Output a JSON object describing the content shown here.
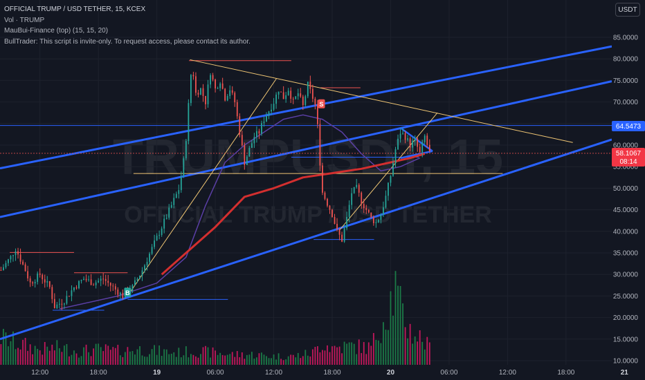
{
  "legend": {
    "symbol_line": "OFFICIAL TRUMP / USD TETHER, 15, KCEX",
    "vol_line": "Vol · TRUMP",
    "indicator_line": "MauBui-Finance (top) (15, 15, 20)",
    "script_line": "BullTrader: This script is invite-only. To request access, please contact its author."
  },
  "currency_button": "USDT",
  "watermark": {
    "ticker": "TRUMPUSDT, 15",
    "name": "OFFICIAL TRUMP / USD TETHER"
  },
  "colors": {
    "background": "#131722",
    "up": "#26a69a",
    "down": "#ef5350",
    "vol_up": "#1b7a47",
    "vol_down": "#c2185b",
    "channel": "#2962ff",
    "ma_red": "#d32f2f",
    "ma_purple": "#5b3fa6",
    "trend_lines": "#f0c674",
    "level_line": "#2962ff"
  },
  "price_labels": {
    "level": {
      "text": "64.5473",
      "value": 64.5473,
      "color": "#2962ff"
    },
    "last": {
      "text": "58.1067",
      "countdown": "08:14",
      "value": 58.1067,
      "color": "#f23645"
    }
  },
  "signals": [
    {
      "label": "B",
      "x": 21.0,
      "y": 25.8,
      "kind": "buy"
    },
    {
      "label": "S",
      "x": 40.9,
      "y": 69.5,
      "kind": "sell"
    }
  ],
  "chart_data": {
    "type": "candlestick",
    "y_axis": {
      "min": 10,
      "max": 85,
      "ticks": [
        85,
        80,
        75,
        70,
        65,
        60,
        55,
        50,
        45,
        40,
        35,
        30,
        25,
        20,
        15,
        10
      ],
      "tick_labels": [
        "85.0000",
        "80.0000",
        "75.0000",
        "70.0000",
        "65.0000",
        "60.0000",
        "55.0000",
        "50.0000",
        "45.0000",
        "40.0000",
        "35.0000",
        "30.0000",
        "25.0000",
        "20.0000",
        "15.0000",
        "10.0000"
      ]
    },
    "x_axis": {
      "unit": "hours",
      "min": 7.9,
      "max": 70.7,
      "ticks": [
        {
          "x": 12,
          "label": "12:00"
        },
        {
          "x": 18,
          "label": "18:00"
        },
        {
          "x": 24,
          "label": "19",
          "bold": true
        },
        {
          "x": 30,
          "label": "06:00"
        },
        {
          "x": 36,
          "label": "12:00"
        },
        {
          "x": 42,
          "label": "18:00"
        },
        {
          "x": 48,
          "label": "20",
          "bold": true
        },
        {
          "x": 54,
          "label": "06:00"
        },
        {
          "x": 60,
          "label": "12:00"
        },
        {
          "x": 66,
          "label": "18:00"
        },
        {
          "x": 72,
          "label": "21",
          "bold": true
        }
      ]
    },
    "price_key_points": [
      [
        8.0,
        31
      ],
      [
        9.0,
        34
      ],
      [
        9.5,
        36
      ],
      [
        10.5,
        31
      ],
      [
        11.0,
        28
      ],
      [
        12.0,
        30
      ],
      [
        13.0,
        27
      ],
      [
        13.5,
        22.5
      ],
      [
        14.5,
        24
      ],
      [
        15.5,
        27
      ],
      [
        16.5,
        29
      ],
      [
        17.5,
        28
      ],
      [
        18.5,
        29
      ],
      [
        19.5,
        27
      ],
      [
        20.5,
        25
      ],
      [
        21.5,
        27
      ],
      [
        22.5,
        31
      ],
      [
        23.5,
        36
      ],
      [
        24.5,
        41
      ],
      [
        25.5,
        46
      ],
      [
        26.3,
        50
      ],
      [
        26.8,
        57
      ],
      [
        27.1,
        64
      ],
      [
        27.3,
        71
      ],
      [
        27.6,
        79
      ],
      [
        28.0,
        72
      ],
      [
        28.5,
        73
      ],
      [
        29.0,
        70
      ],
      [
        29.5,
        77
      ],
      [
        30.0,
        73
      ],
      [
        30.5,
        75
      ],
      [
        31.0,
        71
      ],
      [
        31.5,
        73
      ],
      [
        32.0,
        70
      ],
      [
        32.5,
        63
      ],
      [
        33.0,
        56
      ],
      [
        33.5,
        59
      ],
      [
        34.0,
        62
      ],
      [
        34.5,
        63
      ],
      [
        35.0,
        66
      ],
      [
        35.5,
        68
      ],
      [
        36.0,
        70
      ],
      [
        36.5,
        73
      ],
      [
        37.0,
        71
      ],
      [
        37.5,
        73
      ],
      [
        38.0,
        70
      ],
      [
        38.5,
        72
      ],
      [
        39.0,
        69
      ],
      [
        39.5,
        74
      ],
      [
        40.0,
        71
      ],
      [
        40.3,
        69
      ],
      [
        40.6,
        62
      ],
      [
        40.8,
        54
      ],
      [
        41.0,
        49
      ],
      [
        41.4,
        47
      ],
      [
        42.0,
        44
      ],
      [
        42.5,
        40
      ],
      [
        43.0,
        38
      ],
      [
        43.5,
        43
      ],
      [
        44.0,
        49
      ],
      [
        44.5,
        50
      ],
      [
        45.0,
        47
      ],
      [
        45.5,
        45
      ],
      [
        46.0,
        43
      ],
      [
        46.5,
        42
      ],
      [
        47.0,
        44
      ],
      [
        47.5,
        48
      ],
      [
        48.0,
        53
      ],
      [
        48.5,
        59
      ],
      [
        49.0,
        63
      ],
      [
        49.5,
        62
      ],
      [
        50.0,
        60
      ],
      [
        50.5,
        61
      ],
      [
        51.0,
        58
      ],
      [
        51.5,
        62
      ],
      [
        52.0,
        58.1
      ]
    ],
    "volume_profile": [
      [
        8,
        8
      ],
      [
        10,
        6
      ],
      [
        12,
        4.5
      ],
      [
        14,
        5
      ],
      [
        16,
        4
      ],
      [
        18,
        4.5
      ],
      [
        20,
        4
      ],
      [
        22,
        4.5
      ],
      [
        24,
        4
      ],
      [
        26,
        3.5
      ],
      [
        28,
        4
      ],
      [
        30,
        3.5
      ],
      [
        32,
        3
      ],
      [
        34,
        3
      ],
      [
        36,
        2.5
      ],
      [
        38,
        2.5
      ],
      [
        40,
        3.5
      ],
      [
        41,
        6.5
      ],
      [
        42,
        5
      ],
      [
        44,
        5.5
      ],
      [
        46,
        5
      ],
      [
        47,
        12
      ],
      [
        48,
        19
      ],
      [
        48.5,
        22
      ],
      [
        49,
        16
      ],
      [
        50,
        10
      ],
      [
        51,
        8
      ],
      [
        52,
        5
      ]
    ],
    "channel_lines": [
      {
        "name": "upper",
        "points": [
          [
            7.9,
            54.6
          ],
          [
            70.7,
            82.9
          ]
        ]
      },
      {
        "name": "middle",
        "points": [
          [
            7.9,
            43.3
          ],
          [
            70.7,
            74.8
          ]
        ]
      },
      {
        "name": "lower",
        "points": [
          [
            7.9,
            15.0
          ],
          [
            70.7,
            61.3
          ]
        ]
      }
    ],
    "horizontal_levels": [
      {
        "name": "h-line-top",
        "y": 79.6,
        "x": [
          27.3,
          37.8
        ]
      },
      {
        "name": "h-line-2",
        "y": 73.3,
        "x": [
          40.8,
          44.9
        ]
      },
      {
        "name": "h-line-64",
        "y": 64.5473,
        "x": [
          7.9,
          70.7
        ]
      },
      {
        "name": "h-line-57",
        "y": 57.2,
        "x": [
          37.8,
          50.9
        ]
      },
      {
        "name": "h-line-53",
        "y": 53.4,
        "x": [
          21.6,
          59.5
        ]
      },
      {
        "name": "h-line-38",
        "y": 38.1,
        "x": [
          40.1,
          46.3
        ]
      },
      {
        "name": "h-line-35",
        "y": 35.1,
        "x": [
          8.9,
          15.5
        ]
      },
      {
        "name": "h-line-30",
        "y": 30.4,
        "x": [
          15.5,
          21.0
        ]
      },
      {
        "name": "h-line-24",
        "y": 24.2,
        "x": [
          21.0,
          31.3
        ]
      },
      {
        "name": "h-line-22",
        "y": 21.7,
        "x": [
          13.3,
          18.6
        ]
      }
    ],
    "trend_lines": [
      {
        "name": "descending-resistance",
        "points": [
          [
            27.4,
            79.8
          ],
          [
            66.7,
            60.6
          ]
        ]
      },
      {
        "name": "rising-line-1",
        "points": [
          [
            21.0,
            25.0
          ],
          [
            36.3,
            75.5
          ]
        ]
      },
      {
        "name": "rising-line-2",
        "points": [
          [
            42.8,
            40.4
          ],
          [
            52.8,
            67.5
          ]
        ]
      },
      {
        "name": "triangle-top",
        "points": [
          [
            49.0,
            64.0
          ],
          [
            52.3,
            58.6
          ]
        ]
      },
      {
        "name": "triangle-bottom",
        "points": [
          [
            49.0,
            57.0
          ],
          [
            52.3,
            58.6
          ]
        ]
      }
    ],
    "ma_red_points": [
      [
        24.5,
        30
      ],
      [
        27,
        35
      ],
      [
        30,
        41
      ],
      [
        33,
        48
      ],
      [
        36,
        50
      ],
      [
        39,
        52.5
      ],
      [
        42,
        53.5
      ],
      [
        45,
        54.5
      ],
      [
        48,
        56
      ],
      [
        50,
        57
      ],
      [
        51.5,
        58
      ]
    ],
    "ma_purple_points": [
      [
        14,
        22
      ],
      [
        20,
        25
      ],
      [
        24,
        28
      ],
      [
        27,
        34
      ],
      [
        29,
        46
      ],
      [
        31,
        56
      ],
      [
        33,
        60
      ],
      [
        35,
        63
      ],
      [
        37,
        66
      ],
      [
        39,
        67
      ],
      [
        41,
        66
      ],
      [
        43,
        63
      ],
      [
        45,
        58
      ],
      [
        47,
        54
      ],
      [
        49,
        55
      ],
      [
        51,
        57
      ]
    ]
  }
}
